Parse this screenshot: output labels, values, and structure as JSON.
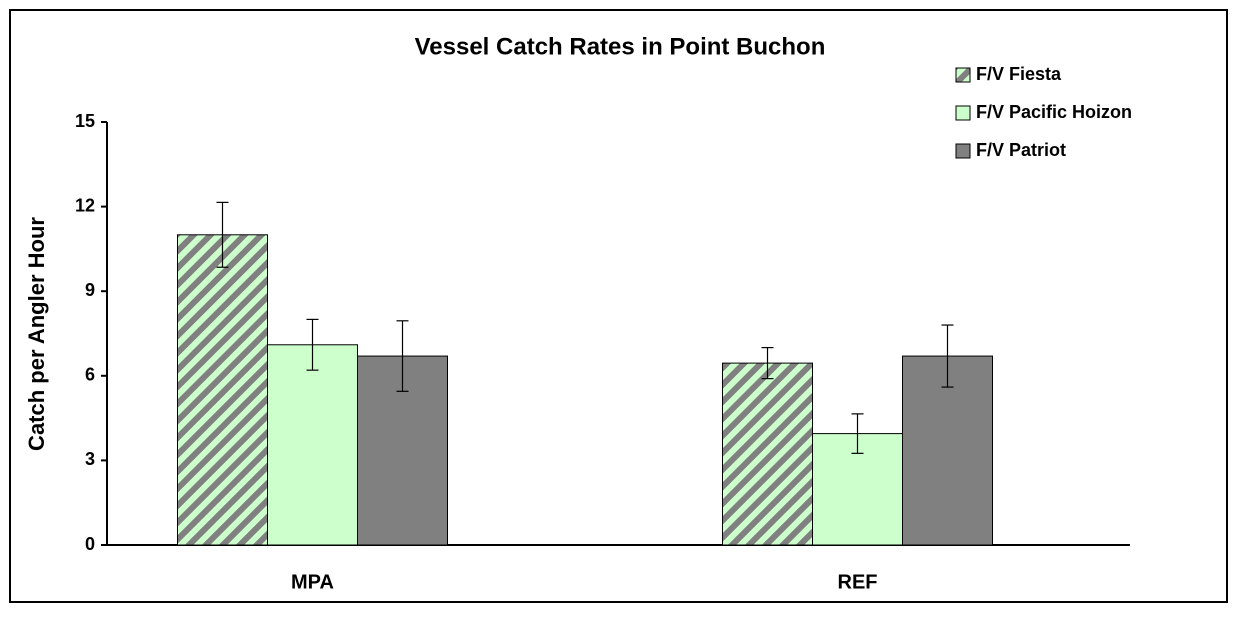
{
  "chart_data": {
    "type": "bar",
    "title": "Vessel Catch Rates in Point Buchon",
    "ylabel": "Catch per Angler Hour",
    "categories": [
      "MPA",
      "REF"
    ],
    "series": [
      {
        "name": "F/V Fiesta",
        "color": "#ccffcc",
        "hatch_color": "#808080",
        "values": [
          11.0,
          6.45
        ],
        "errors": [
          1.15,
          0.55
        ]
      },
      {
        "name": "F/V Pacific Hoizon",
        "color": "#ccffcc",
        "values": [
          7.1,
          3.95
        ],
        "errors": [
          0.9,
          0.7
        ]
      },
      {
        "name": "F/V Patriot",
        "color": "#808080",
        "values": [
          6.7,
          6.7
        ],
        "errors": [
          1.25,
          1.1
        ]
      }
    ],
    "ylim": [
      0,
      15
    ],
    "yticks": [
      0,
      3,
      6,
      9,
      12,
      15
    ],
    "grid": false,
    "legend": "upper right"
  }
}
